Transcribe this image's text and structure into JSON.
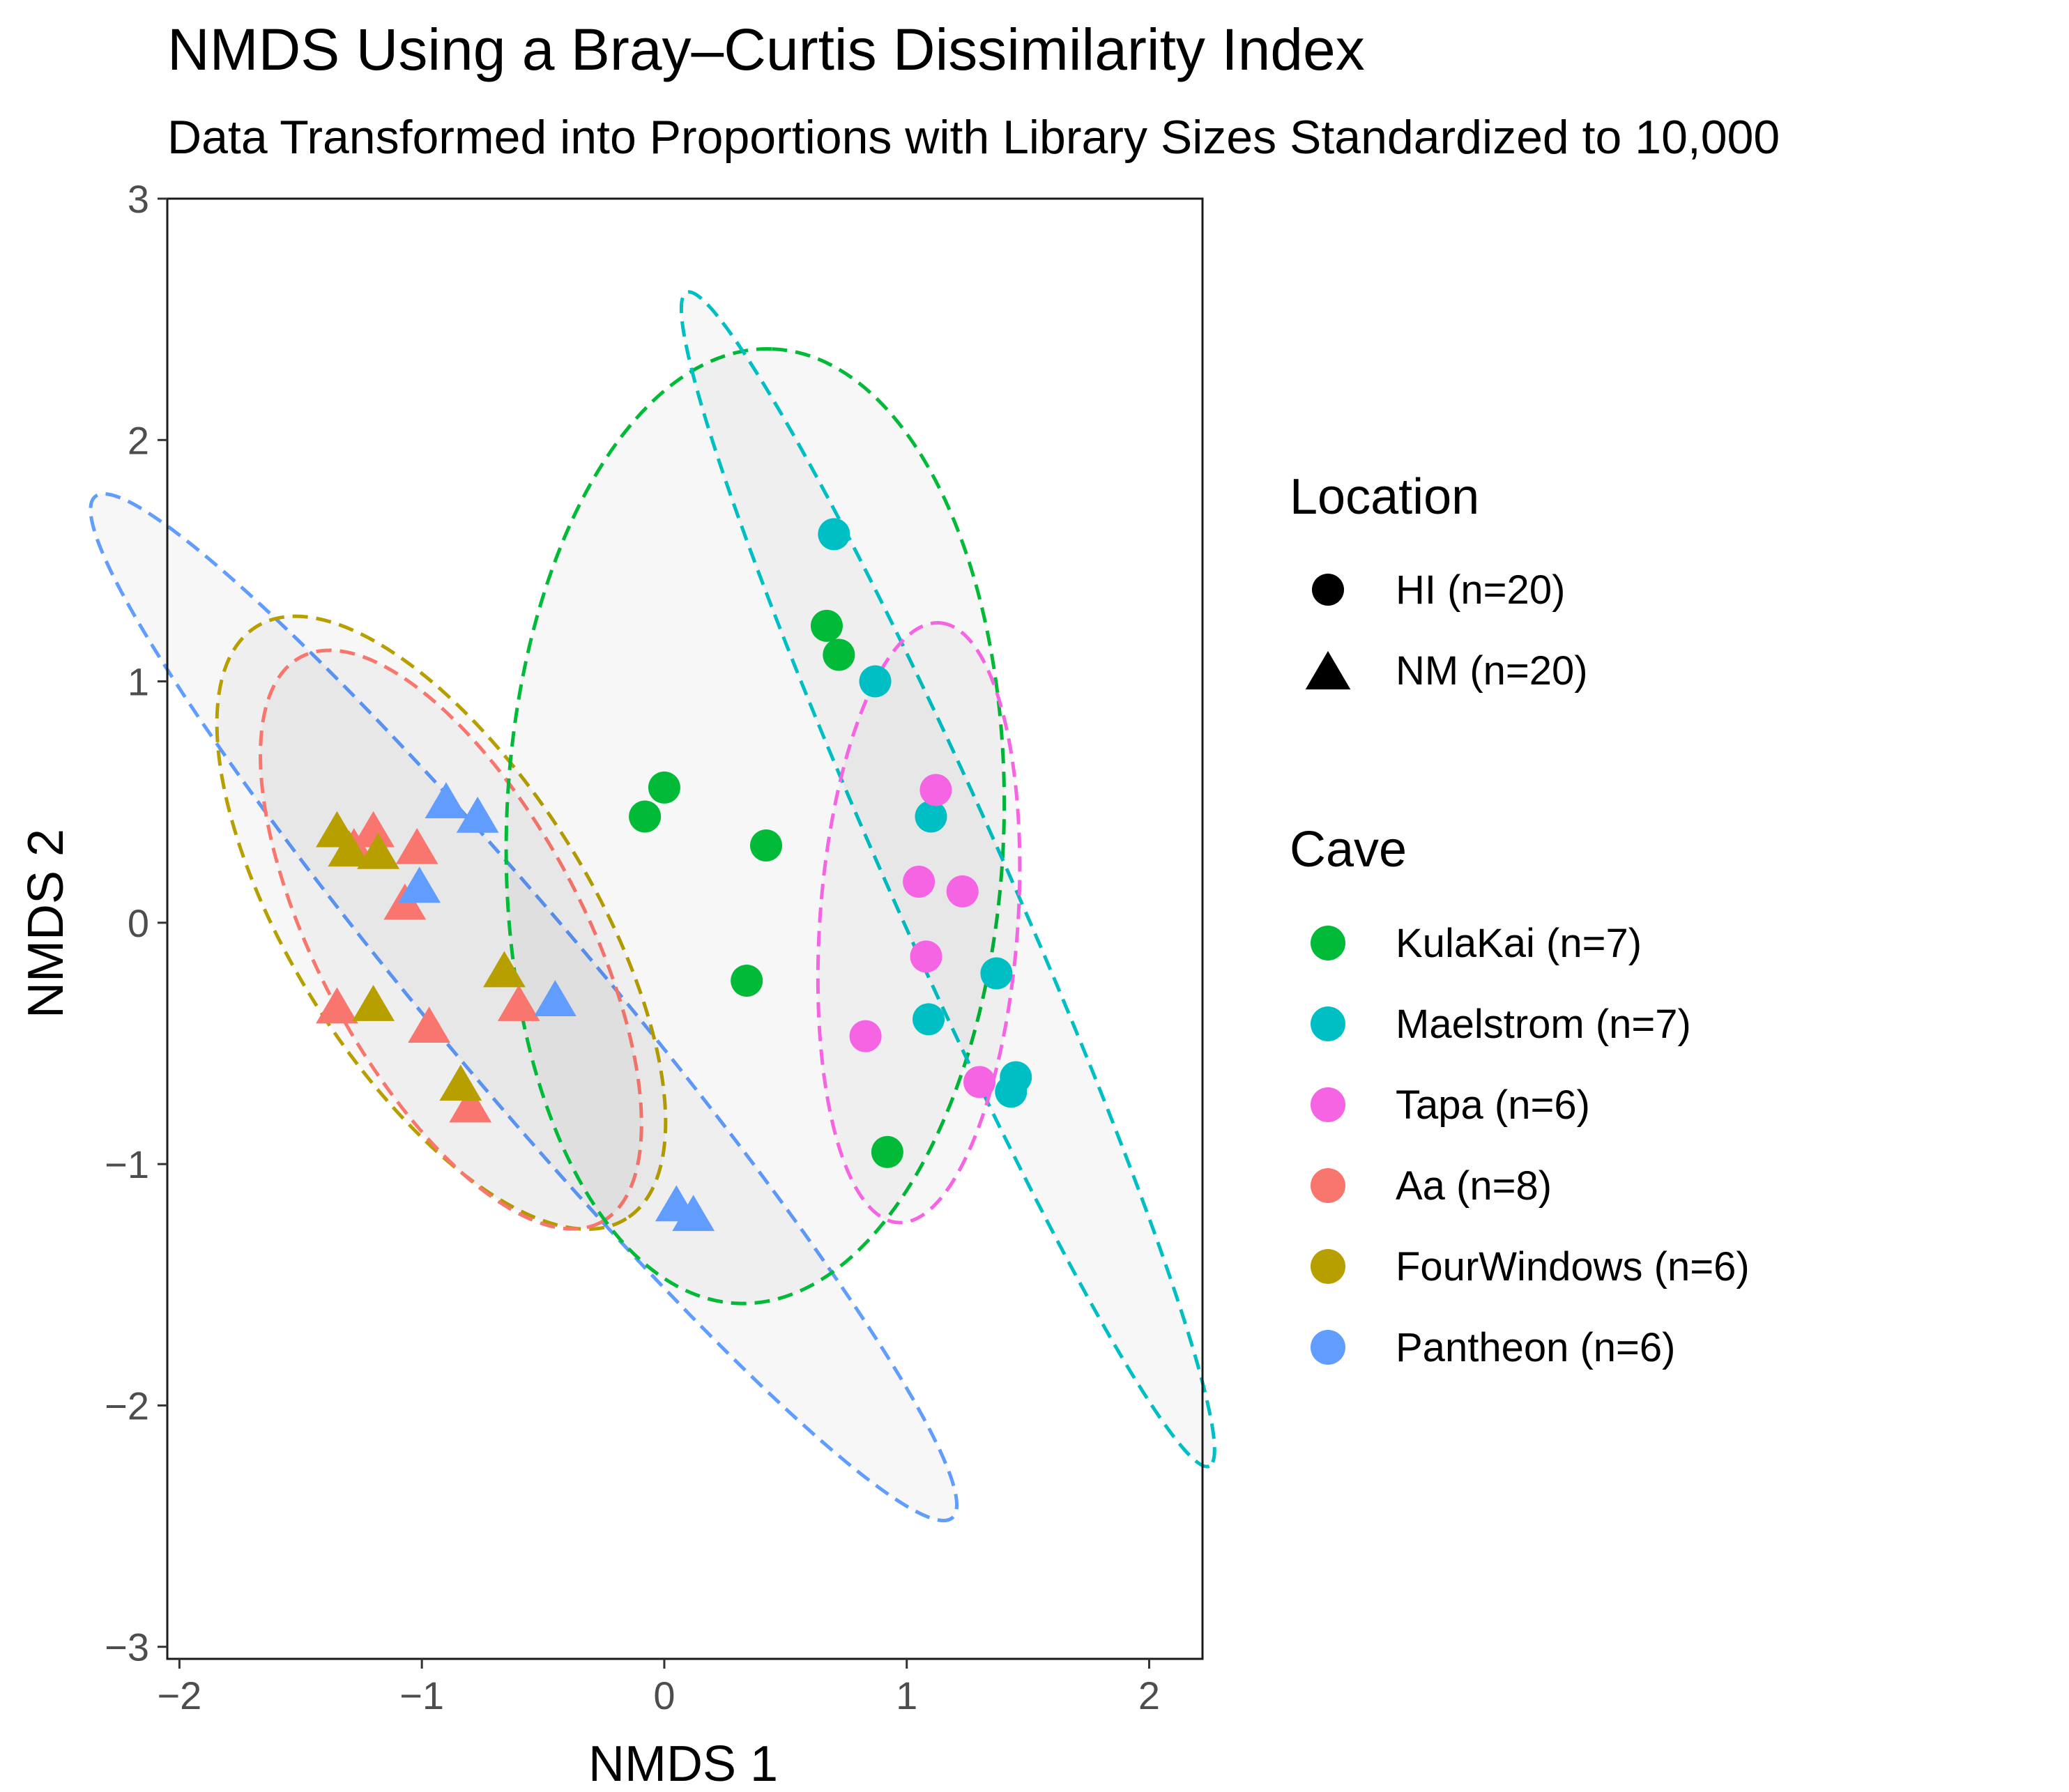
{
  "chart_data": {
    "type": "scatter",
    "title": "NMDS Using a Bray–Curtis Dissimilarity Index",
    "subtitle": "Data Transformed into Proportions with Library Sizes Standardized to 10,000",
    "xlabel": "NMDS 1",
    "ylabel": "NMDS 2",
    "xlim": [
      -2.05,
      2.22
    ],
    "ylim": [
      -3.05,
      3.0
    ],
    "xticks": [
      -2,
      -1,
      0,
      1,
      2
    ],
    "xtick_labels": [
      "−2",
      "−1",
      "0",
      "1",
      "2"
    ],
    "yticks": [
      -3,
      -2,
      -1,
      0,
      1,
      2,
      3
    ],
    "ytick_labels": [
      "−3",
      "−2",
      "−1",
      "0",
      "1",
      "2",
      "3"
    ],
    "grid": false,
    "legend_location": "right",
    "legends": {
      "location": {
        "title": "Location",
        "items": [
          {
            "label": "HI (n=20)",
            "shape": "circle"
          },
          {
            "label": "NM (n=20)",
            "shape": "triangle"
          }
        ]
      },
      "cave": {
        "title": "Cave",
        "items": [
          {
            "label": "KulaKai (n=7)",
            "key": "KulaKai"
          },
          {
            "label": "Maelstrom (n=7)",
            "key": "Maelstrom"
          },
          {
            "label": "Tapa (n=6)",
            "key": "Tapa"
          },
          {
            "label": "Aa (n=8)",
            "key": "Aa"
          },
          {
            "label": "FourWindows (n=6)",
            "key": "FourWindows"
          },
          {
            "label": "Pantheon (n=6)",
            "key": "Pantheon"
          }
        ]
      }
    },
    "colors": {
      "KulaKai": "#00BA38",
      "Maelstrom": "#00BFC4",
      "Tapa": "#F564E3",
      "Aa": "#F8766D",
      "FourWindows": "#B79F00",
      "Pantheon": "#619CFF"
    },
    "series": [
      {
        "name": "KulaKai",
        "shape": "circle",
        "points": [
          [
            0.0,
            0.56
          ],
          [
            -0.08,
            0.44
          ],
          [
            0.42,
            0.32
          ],
          [
            0.34,
            -0.24
          ],
          [
            0.67,
            1.23
          ],
          [
            0.72,
            1.11
          ],
          [
            0.92,
            -0.95
          ]
        ]
      },
      {
        "name": "Maelstrom",
        "shape": "circle",
        "points": [
          [
            0.7,
            1.61
          ],
          [
            0.87,
            1.0
          ],
          [
            1.1,
            0.44
          ],
          [
            1.37,
            -0.21
          ],
          [
            1.09,
            -0.4
          ],
          [
            1.45,
            -0.64
          ],
          [
            1.43,
            -0.7
          ]
        ]
      },
      {
        "name": "Tapa",
        "shape": "circle",
        "points": [
          [
            1.12,
            0.55
          ],
          [
            1.05,
            0.17
          ],
          [
            1.23,
            0.13
          ],
          [
            1.08,
            -0.14
          ],
          [
            0.83,
            -0.47
          ],
          [
            1.3,
            -0.66
          ]
        ]
      },
      {
        "name": "Aa",
        "shape": "triangle",
        "points": [
          [
            -1.2,
            0.37
          ],
          [
            -1.28,
            0.3
          ],
          [
            -1.02,
            0.3
          ],
          [
            -1.07,
            0.07
          ],
          [
            -1.35,
            -0.36
          ],
          [
            -0.97,
            -0.44
          ],
          [
            -0.6,
            -0.35
          ],
          [
            -0.8,
            -0.77
          ]
        ]
      },
      {
        "name": "FourWindows",
        "shape": "triangle",
        "points": [
          [
            -1.35,
            0.37
          ],
          [
            -1.3,
            0.29
          ],
          [
            -1.18,
            0.28
          ],
          [
            -1.2,
            -0.35
          ],
          [
            -0.66,
            -0.21
          ],
          [
            -0.84,
            -0.68
          ]
        ]
      },
      {
        "name": "Pantheon",
        "shape": "triangle",
        "points": [
          [
            -0.9,
            0.49
          ],
          [
            -0.77,
            0.43
          ],
          [
            -1.01,
            0.14
          ],
          [
            -0.45,
            -0.33
          ],
          [
            0.05,
            -1.18
          ],
          [
            0.12,
            -1.22
          ]
        ]
      }
    ],
    "ellipses": [
      {
        "group": "Pantheon",
        "cx": -0.58,
        "cy": -0.35,
        "rx": 2.75,
        "ry": 0.34,
        "angle_deg": -50
      },
      {
        "group": "FourWindows",
        "cx": -0.92,
        "cy": 0.0,
        "rx": 1.44,
        "ry": 0.62,
        "angle_deg": -58
      },
      {
        "group": "Aa",
        "cx": -0.88,
        "cy": -0.07,
        "rx": 1.32,
        "ry": 0.55,
        "angle_deg": -62
      },
      {
        "group": "KulaKai",
        "cx": 0.375,
        "cy": 0.4,
        "rx": 1.97,
        "ry": 1.03,
        "angle_deg": 88
      },
      {
        "group": "Maelstrom",
        "cx": 1.17,
        "cy": 0.18,
        "rx": 2.65,
        "ry": 0.24,
        "angle_deg": -66
      },
      {
        "group": "Tapa",
        "cx": 1.05,
        "cy": 0.0,
        "rx": 1.24,
        "ry": 0.41,
        "angle_deg": 86
      }
    ]
  }
}
